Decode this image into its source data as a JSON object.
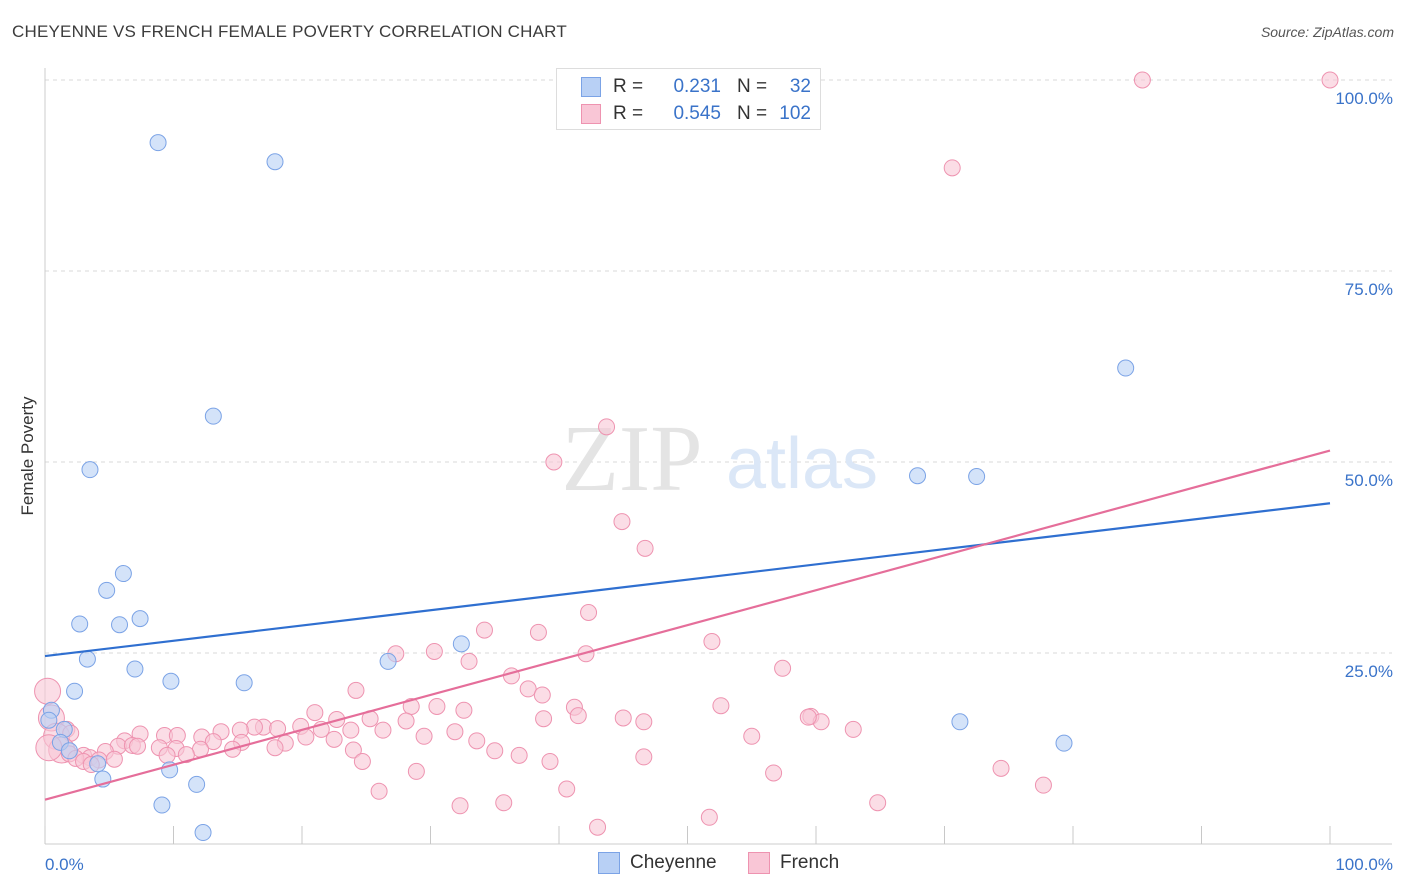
{
  "title": "CHEYENNE VS FRENCH FEMALE POVERTY CORRELATION CHART",
  "source": "Source: ZipAtlas.com",
  "watermark": {
    "zip": "ZIP",
    "atlas": "atlas"
  },
  "legend": {
    "rows": [
      {
        "r_label": "R =",
        "r_value": "0.231",
        "n_label": "N =",
        "n_value": "32"
      },
      {
        "r_label": "R =",
        "r_value": "0.545",
        "n_label": "N =",
        "n_value": "102"
      }
    ]
  },
  "colors": {
    "cheyenne_fill": "#b8d0f5",
    "cheyenne_stroke": "#7ba3e6",
    "cheyenne_line": "#2f6fd0",
    "french_fill": "#f9c6d6",
    "french_stroke": "#ee93b0",
    "french_line": "#e56e9a",
    "tick_label": "#3a73c9",
    "grid": "#d8d8d8"
  },
  "chart_data": {
    "type": "scatter",
    "title": "CHEYENNE VS FRENCH FEMALE POVERTY CORRELATION CHART",
    "xlabel": "",
    "ylabel": "Female Poverty",
    "xlim": [
      0,
      100
    ],
    "ylim": [
      0,
      100
    ],
    "x_tick_labels": [
      "0.0%",
      "100.0%"
    ],
    "y_tick_labels": [
      "25.0%",
      "50.0%",
      "75.0%",
      "100.0%"
    ],
    "y_ticks": [
      25,
      50,
      75,
      100
    ],
    "x_minor_ticks": [
      0,
      10,
      20,
      30,
      40,
      50,
      60,
      70,
      80,
      90,
      100
    ],
    "grid": "horizontal dashed",
    "legend_position": "top-center",
    "series": [
      {
        "name": "Cheyenne",
        "r": 0.231,
        "n": 32,
        "trend": {
          "x": [
            0,
            100
          ],
          "y": [
            24.6,
            44.6
          ]
        },
        "points": [
          [
            8.8,
            91.8
          ],
          [
            17.9,
            89.3
          ],
          [
            84.1,
            62.3
          ],
          [
            13.1,
            56.0
          ],
          [
            3.5,
            49.0
          ],
          [
            67.9,
            48.2
          ],
          [
            72.5,
            48.1
          ],
          [
            6.1,
            35.4
          ],
          [
            4.8,
            33.2
          ],
          [
            7.4,
            29.5
          ],
          [
            2.7,
            28.8
          ],
          [
            5.8,
            28.7
          ],
          [
            32.4,
            26.2
          ],
          [
            3.3,
            24.2
          ],
          [
            26.7,
            23.9
          ],
          [
            7.0,
            22.9
          ],
          [
            9.8,
            21.3
          ],
          [
            15.5,
            21.1
          ],
          [
            2.3,
            20.0
          ],
          [
            0.5,
            17.5
          ],
          [
            0.3,
            16.2
          ],
          [
            71.2,
            16.0
          ],
          [
            1.5,
            15.0
          ],
          [
            1.2,
            13.3
          ],
          [
            79.3,
            13.2
          ],
          [
            1.9,
            12.2
          ],
          [
            4.1,
            10.5
          ],
          [
            9.7,
            9.7
          ],
          [
            4.5,
            8.5
          ],
          [
            11.8,
            7.8
          ],
          [
            9.1,
            5.1
          ],
          [
            12.3,
            1.5
          ]
        ]
      },
      {
        "name": "French",
        "r": 0.545,
        "n": 102,
        "trend": {
          "x": [
            0,
            100
          ],
          "y": [
            5.8,
            51.5
          ]
        },
        "points": [
          [
            85.4,
            100.0
          ],
          [
            100.0,
            100.0
          ],
          [
            70.6,
            88.5
          ],
          [
            43.7,
            54.6
          ],
          [
            39.6,
            50.0
          ],
          [
            44.9,
            42.2
          ],
          [
            46.7,
            38.7
          ],
          [
            42.3,
            30.3
          ],
          [
            34.2,
            28.0
          ],
          [
            38.4,
            27.7
          ],
          [
            51.9,
            26.5
          ],
          [
            27.3,
            24.9
          ],
          [
            30.3,
            25.2
          ],
          [
            33.0,
            23.9
          ],
          [
            42.1,
            24.9
          ],
          [
            57.4,
            23.0
          ],
          [
            36.3,
            22.0
          ],
          [
            37.6,
            20.3
          ],
          [
            0.2,
            20.0
          ],
          [
            24.2,
            20.1
          ],
          [
            38.7,
            19.5
          ],
          [
            41.2,
            17.9
          ],
          [
            28.5,
            18.0
          ],
          [
            30.5,
            18.0
          ],
          [
            32.6,
            17.5
          ],
          [
            21.0,
            17.2
          ],
          [
            0.5,
            16.5
          ],
          [
            41.5,
            16.8
          ],
          [
            38.8,
            16.4
          ],
          [
            25.3,
            16.4
          ],
          [
            28.1,
            16.1
          ],
          [
            45.0,
            16.5
          ],
          [
            46.6,
            16.0
          ],
          [
            22.7,
            16.3
          ],
          [
            17.0,
            15.3
          ],
          [
            19.9,
            15.4
          ],
          [
            18.1,
            15.1
          ],
          [
            16.3,
            15.3
          ],
          [
            21.5,
            15.0
          ],
          [
            23.8,
            14.9
          ],
          [
            15.2,
            14.9
          ],
          [
            13.7,
            14.7
          ],
          [
            1.7,
            15.0
          ],
          [
            31.9,
            14.7
          ],
          [
            26.3,
            14.9
          ],
          [
            33.6,
            13.5
          ],
          [
            29.5,
            14.1
          ],
          [
            20.3,
            14.0
          ],
          [
            22.5,
            13.7
          ],
          [
            9.3,
            14.2
          ],
          [
            10.3,
            14.2
          ],
          [
            12.2,
            14.0
          ],
          [
            7.4,
            14.4
          ],
          [
            0.9,
            14.1
          ],
          [
            2.0,
            14.5
          ],
          [
            13.1,
            13.4
          ],
          [
            15.3,
            13.3
          ],
          [
            18.7,
            13.2
          ],
          [
            6.2,
            13.5
          ],
          [
            24.0,
            12.3
          ],
          [
            35.0,
            12.2
          ],
          [
            12.1,
            12.4
          ],
          [
            5.7,
            12.8
          ],
          [
            14.6,
            12.4
          ],
          [
            17.9,
            12.6
          ],
          [
            10.2,
            12.5
          ],
          [
            8.9,
            12.6
          ],
          [
            11.0,
            11.7
          ],
          [
            4.7,
            12.1
          ],
          [
            1.3,
            12.3
          ],
          [
            0.3,
            12.6
          ],
          [
            1.9,
            11.8
          ],
          [
            3.0,
            11.6
          ],
          [
            3.5,
            11.3
          ],
          [
            2.4,
            11.2
          ],
          [
            4.2,
            11.0
          ],
          [
            5.4,
            11.1
          ],
          [
            6.8,
            12.9
          ],
          [
            9.5,
            11.6
          ],
          [
            3.0,
            10.8
          ],
          [
            3.6,
            10.4
          ],
          [
            36.9,
            11.6
          ],
          [
            24.7,
            10.8
          ],
          [
            7.2,
            12.8
          ],
          [
            59.6,
            16.7
          ],
          [
            60.4,
            16.0
          ],
          [
            55.0,
            14.1
          ],
          [
            52.6,
            18.1
          ],
          [
            59.4,
            16.6
          ],
          [
            62.9,
            15.0
          ],
          [
            46.6,
            11.4
          ],
          [
            39.3,
            10.8
          ],
          [
            56.7,
            9.3
          ],
          [
            74.4,
            9.9
          ],
          [
            77.7,
            7.7
          ],
          [
            28.9,
            9.5
          ],
          [
            40.6,
            7.2
          ],
          [
            32.3,
            5.0
          ],
          [
            35.7,
            5.4
          ],
          [
            26.0,
            6.9
          ],
          [
            64.8,
            5.4
          ],
          [
            51.7,
            3.5
          ],
          [
            43.0,
            2.2
          ]
        ]
      }
    ]
  },
  "bottom_legend": [
    "Cheyenne",
    "French"
  ]
}
